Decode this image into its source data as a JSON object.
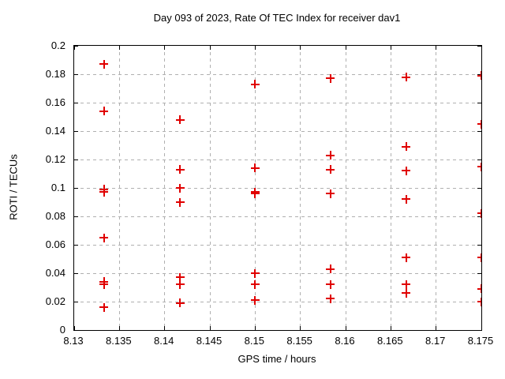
{
  "chart_data": {
    "type": "scatter",
    "title": "Day 093 of 2023, Rate Of TEC Index for receiver dav1",
    "xlabel": "GPS time / hours",
    "ylabel": "ROTI / TECUs",
    "xlim": [
      8.13,
      8.175
    ],
    "ylim": [
      0,
      0.2
    ],
    "grid": true,
    "legend_position": "none",
    "marker_shape": "plus",
    "x_ticks": [
      {
        "value": 8.13,
        "label": "8.13"
      },
      {
        "value": 8.135,
        "label": "8.135"
      },
      {
        "value": 8.14,
        "label": "8.14"
      },
      {
        "value": 8.145,
        "label": "8.145"
      },
      {
        "value": 8.15,
        "label": "8.15"
      },
      {
        "value": 8.155,
        "label": "8.155"
      },
      {
        "value": 8.16,
        "label": "8.16"
      },
      {
        "value": 8.165,
        "label": "8.165"
      },
      {
        "value": 8.17,
        "label": "8.17"
      },
      {
        "value": 8.175,
        "label": "8.175"
      }
    ],
    "y_ticks": [
      {
        "value": 0,
        "label": "0"
      },
      {
        "value": 0.02,
        "label": "0.02"
      },
      {
        "value": 0.04,
        "label": "0.04"
      },
      {
        "value": 0.06,
        "label": "0.06"
      },
      {
        "value": 0.08,
        "label": "0.08"
      },
      {
        "value": 0.1,
        "label": "0.1"
      },
      {
        "value": 0.12,
        "label": "0.12"
      },
      {
        "value": 0.14,
        "label": "0.14"
      },
      {
        "value": 0.16,
        "label": "0.16"
      },
      {
        "value": 0.18,
        "label": "0.18"
      },
      {
        "value": 0.2,
        "label": "0.2"
      }
    ],
    "series": [
      {
        "name": "ROTI",
        "points": [
          [
            8.1333,
            0.187
          ],
          [
            8.1333,
            0.154
          ],
          [
            8.1333,
            0.099
          ],
          [
            8.1333,
            0.097
          ],
          [
            8.1333,
            0.065
          ],
          [
            8.1333,
            0.034
          ],
          [
            8.1333,
            0.032
          ],
          [
            8.1333,
            0.016
          ],
          [
            8.1417,
            0.148
          ],
          [
            8.1417,
            0.113
          ],
          [
            8.1417,
            0.1
          ],
          [
            8.1417,
            0.09
          ],
          [
            8.1417,
            0.037
          ],
          [
            8.1417,
            0.032
          ],
          [
            8.1417,
            0.019
          ],
          [
            8.15,
            0.173
          ],
          [
            8.15,
            0.114
          ],
          [
            8.15,
            0.097
          ],
          [
            8.15,
            0.096
          ],
          [
            8.15,
            0.04
          ],
          [
            8.15,
            0.032
          ],
          [
            8.15,
            0.021
          ],
          [
            8.1583,
            0.177
          ],
          [
            8.1583,
            0.123
          ],
          [
            8.1583,
            0.113
          ],
          [
            8.1583,
            0.096
          ],
          [
            8.1583,
            0.043
          ],
          [
            8.1583,
            0.032
          ],
          [
            8.1583,
            0.022
          ],
          [
            8.1667,
            0.178
          ],
          [
            8.1667,
            0.129
          ],
          [
            8.1667,
            0.112
          ],
          [
            8.1667,
            0.092
          ],
          [
            8.1667,
            0.051
          ],
          [
            8.1667,
            0.032
          ],
          [
            8.1667,
            0.026
          ],
          [
            8.175,
            0.179
          ],
          [
            8.175,
            0.145
          ],
          [
            8.175,
            0.115
          ],
          [
            8.175,
            0.082
          ],
          [
            8.175,
            0.051
          ],
          [
            8.175,
            0.029
          ],
          [
            8.175,
            0.02
          ]
        ]
      }
    ],
    "colors": {
      "marker": "#e00000",
      "grid": "#b0b0b0",
      "frame": "#000000",
      "background": "#ffffff",
      "text": "#000000"
    }
  }
}
